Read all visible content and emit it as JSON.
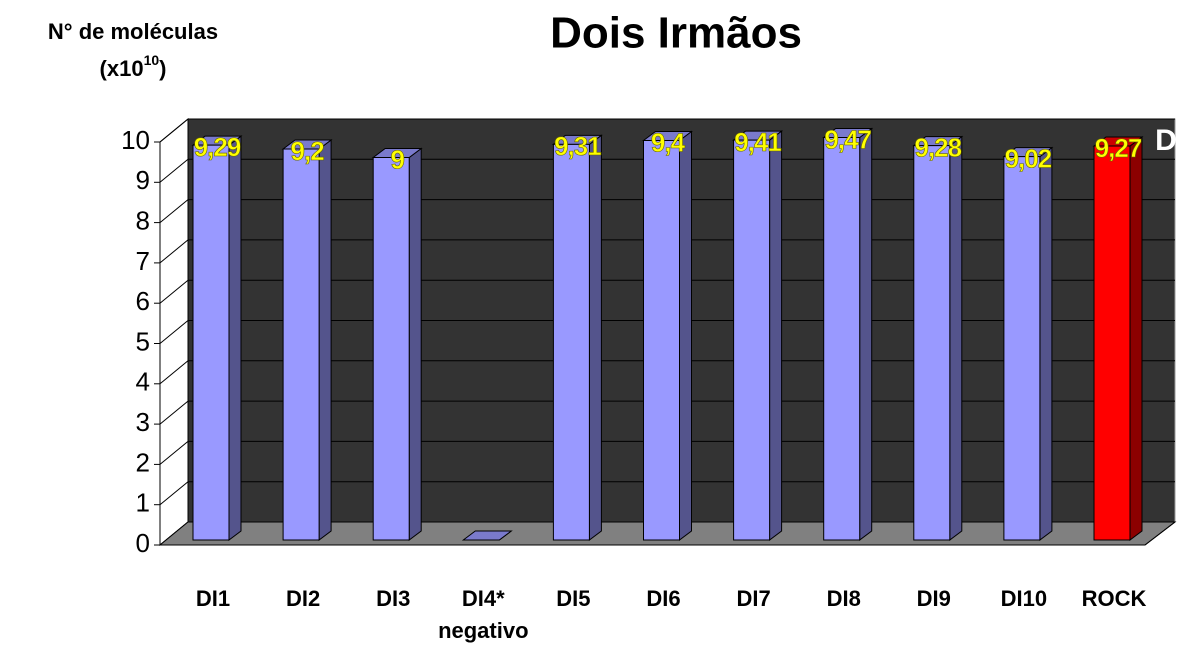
{
  "chart_data": {
    "type": "bar3d",
    "title": "Dois Irmãos",
    "ylabel": "N° de moléculas",
    "yunit": {
      "prefix": "(x10",
      "exponent": "10",
      "suffix": ")"
    },
    "annotation": "D",
    "categories": [
      "DI1",
      "DI2",
      "DI3",
      "DI4*",
      "DI5",
      "DI6",
      "DI7",
      "DI8",
      "DI9",
      "DI10",
      "ROCK"
    ],
    "category_notes": [
      null,
      null,
      null,
      "negativo",
      null,
      null,
      null,
      null,
      null,
      null,
      null
    ],
    "values": [
      9.29,
      9.2,
      9,
      0,
      9.31,
      9.4,
      9.41,
      9.47,
      9.28,
      9.02,
      9.27
    ],
    "value_labels": [
      "9,29",
      "9,2",
      "9",
      null,
      "9,31",
      "9,4",
      "9,41",
      "9,47",
      "9,28",
      "9,02",
      "9,27"
    ],
    "colors": [
      "#9999ff",
      "#9999ff",
      "#9999ff",
      "#9999ff",
      "#9999ff",
      "#9999ff",
      "#9999ff",
      "#9999ff",
      "#9999ff",
      "#9999ff",
      "#ff0000"
    ],
    "ylim": [
      0,
      10
    ],
    "yticks": [
      0,
      1,
      2,
      3,
      4,
      5,
      6,
      7,
      8,
      9,
      10
    ],
    "grid": true
  }
}
